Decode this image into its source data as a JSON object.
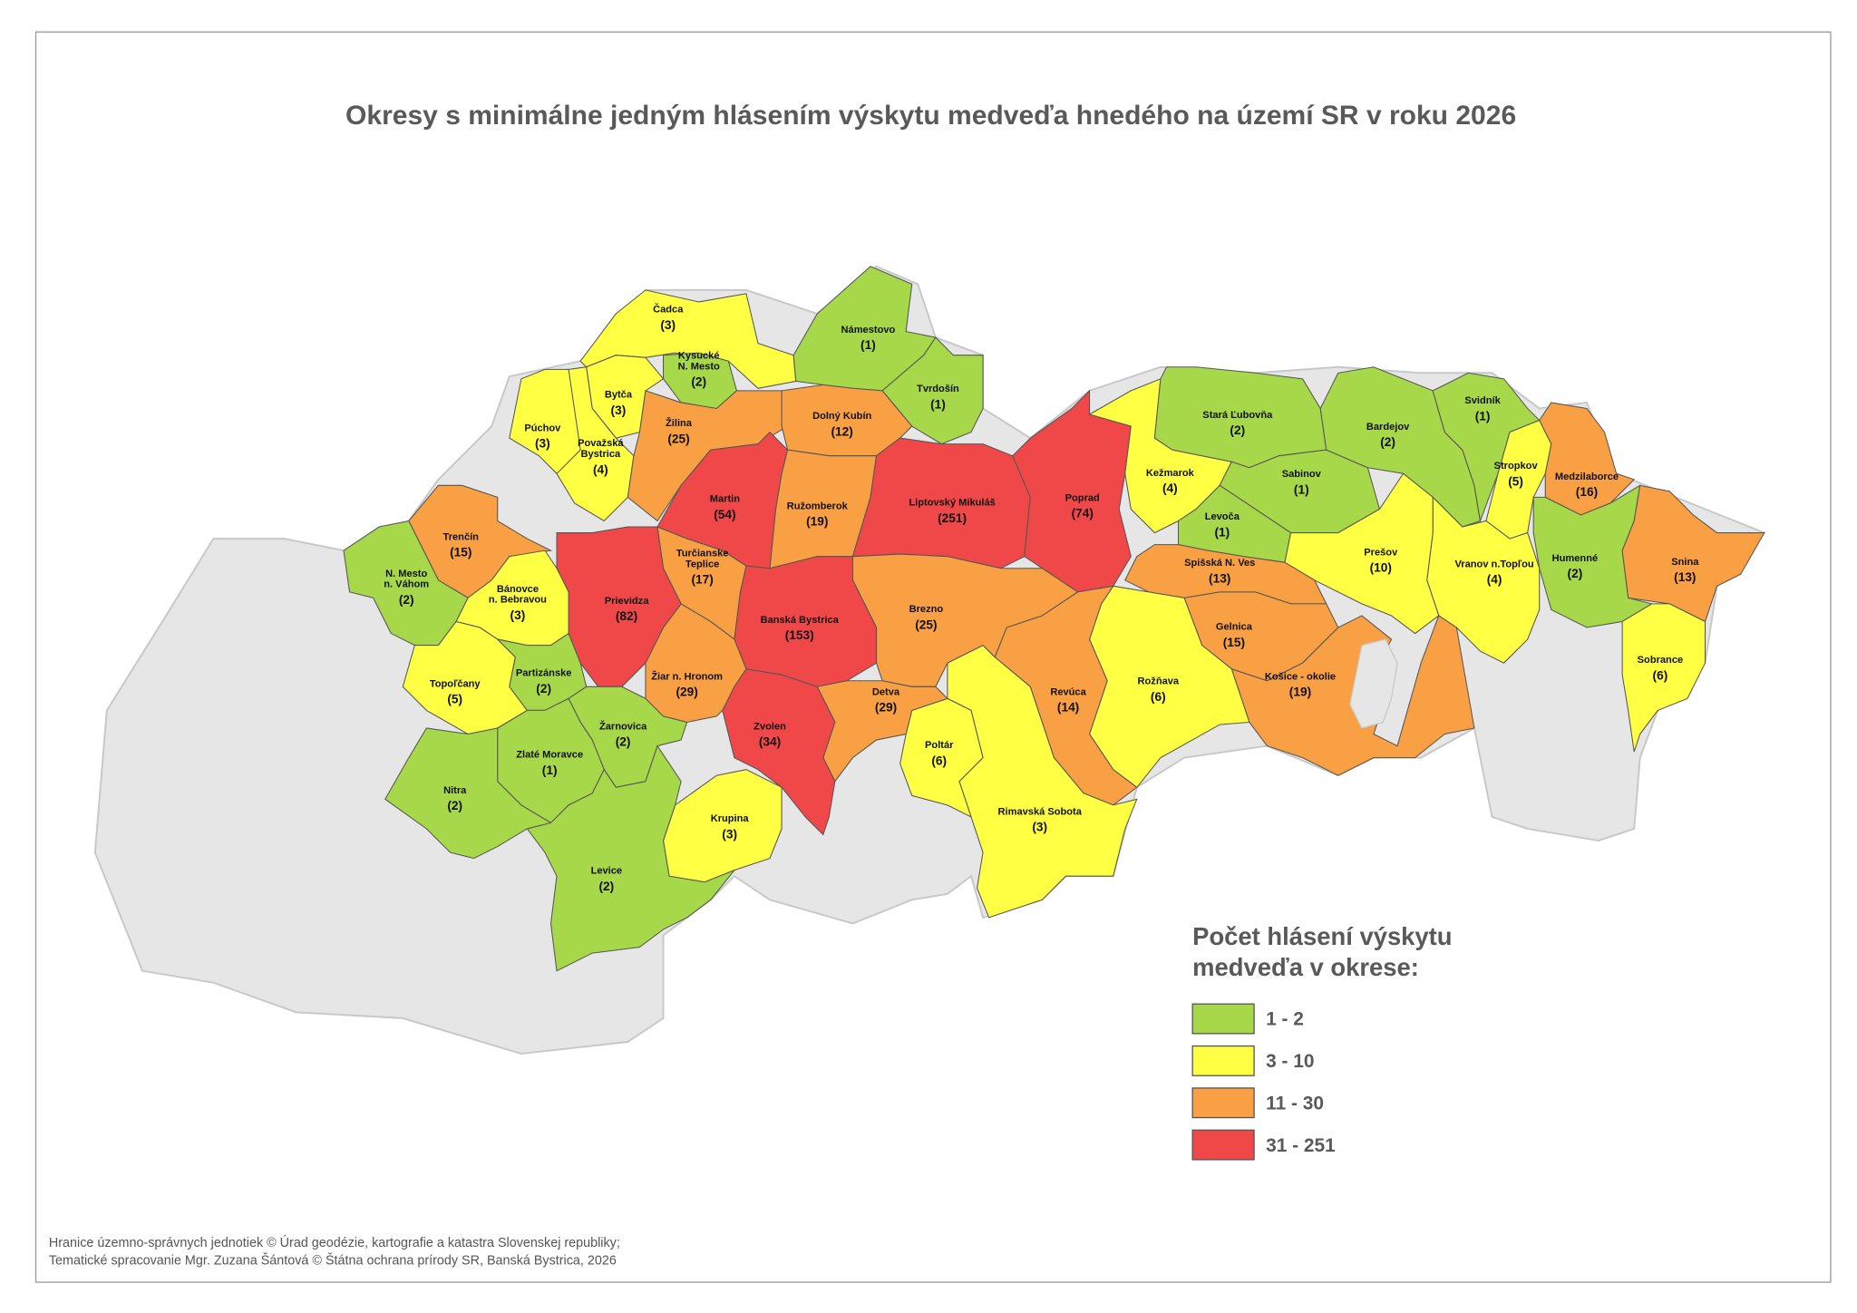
{
  "title": "Okresy s minimálne jedným hlásením výskytu medveďa hnedého na území SR v roku 2026",
  "districts": [
    {
      "name": "Čadca",
      "label": "(3)",
      "color": "#ffff44"
    },
    {
      "name": "Kysucké\nN. Mesto",
      "label": "(2)",
      "color": "#a6d84a"
    },
    {
      "name": "Bytča",
      "label": "(3)",
      "color": "#ffff44"
    },
    {
      "name": "Púchov",
      "label": "(3)",
      "color": "#ffff44"
    },
    {
      "name": "Považská\nBystrica",
      "label": "(4)",
      "color": "#ffff44"
    },
    {
      "name": "Žilina",
      "label": "(25)",
      "color": "#f8a043"
    },
    {
      "name": "Námestovo",
      "label": "(1)",
      "color": "#a6d84a"
    },
    {
      "name": "Tvrdošín",
      "label": "(1)",
      "color": "#a6d84a"
    },
    {
      "name": "Dolný Kubín",
      "label": "(12)",
      "color": "#f8a043"
    },
    {
      "name": "Martin",
      "label": "(54)",
      "color": "#f04848"
    },
    {
      "name": "Ružomberok",
      "label": "(19)",
      "color": "#f8a043"
    },
    {
      "name": "Liptovský Mikuláš",
      "label": "(251)",
      "color": "#f04848"
    },
    {
      "name": "Poprad",
      "label": "(74)",
      "color": "#f04848"
    },
    {
      "name": "Kežmarok",
      "label": "(4)",
      "color": "#ffff44"
    },
    {
      "name": "Stará Ľubovňa",
      "label": "(2)",
      "color": "#a6d84a"
    },
    {
      "name": "Sabinov",
      "label": "(1)",
      "color": "#a6d84a"
    },
    {
      "name": "Levoča",
      "label": "(1)",
      "color": "#a6d84a"
    },
    {
      "name": "Bardejov",
      "label": "(2)",
      "color": "#a6d84a"
    },
    {
      "name": "Svidník",
      "label": "(1)",
      "color": "#a6d84a"
    },
    {
      "name": "Stropkov",
      "label": "(5)",
      "color": "#ffff44"
    },
    {
      "name": "Medzilaborce",
      "label": "(16)",
      "color": "#f8a043"
    },
    {
      "name": "Humenné",
      "label": "(2)",
      "color": "#a6d84a"
    },
    {
      "name": "Snina",
      "label": "(13)",
      "color": "#f8a043"
    },
    {
      "name": "Vranov n.Topľou",
      "label": "(4)",
      "color": "#ffff44"
    },
    {
      "name": "Prešov",
      "label": "(10)",
      "color": "#ffff44"
    },
    {
      "name": "Spišská N. Ves",
      "label": "(13)",
      "color": "#f8a043"
    },
    {
      "name": "Gelnica",
      "label": "(15)",
      "color": "#f8a043"
    },
    {
      "name": "Košice - okolie",
      "label": "(19)",
      "color": "#f8a043"
    },
    {
      "name": "Sobrance",
      "label": "(6)",
      "color": "#ffff44"
    },
    {
      "name": "Rožňava",
      "label": "(6)",
      "color": "#ffff44"
    },
    {
      "name": "Revúca",
      "label": "(14)",
      "color": "#f8a043"
    },
    {
      "name": "Rimavská Sobota",
      "label": "(3)",
      "color": "#ffff44"
    },
    {
      "name": "Poltár",
      "label": "(6)",
      "color": "#ffff44"
    },
    {
      "name": "Brezno",
      "label": "(25)",
      "color": "#f8a043"
    },
    {
      "name": "Banská Bystrica",
      "label": "(153)",
      "color": "#f04848"
    },
    {
      "name": "Detva",
      "label": "(29)",
      "color": "#f8a043"
    },
    {
      "name": "Zvolen",
      "label": "(34)",
      "color": "#f04848"
    },
    {
      "name": "Turčianske\nTeplice",
      "label": "(17)",
      "color": "#f8a043"
    },
    {
      "name": "Žiar n. Hronom",
      "label": "(29)",
      "color": "#f8a043"
    },
    {
      "name": "Krupina",
      "label": "(3)",
      "color": "#ffff44"
    },
    {
      "name": "Prievidza",
      "label": "(82)",
      "color": "#f04848"
    },
    {
      "name": "Trenčín",
      "label": "(15)",
      "color": "#f8a043"
    },
    {
      "name": "N. Mesto\nn. Váhom",
      "label": "(2)",
      "color": "#a6d84a"
    },
    {
      "name": "Bánovce\nn. Bebravou",
      "label": "(3)",
      "color": "#ffff44"
    },
    {
      "name": "Topoľčany",
      "label": "(5)",
      "color": "#ffff44"
    },
    {
      "name": "Partizánske",
      "label": "(2)",
      "color": "#a6d84a"
    },
    {
      "name": "Žarnovica",
      "label": "(2)",
      "color": "#a6d84a"
    },
    {
      "name": "Zlaté Moravce",
      "label": "(1)",
      "color": "#a6d84a"
    },
    {
      "name": "Nitra",
      "label": "(2)",
      "color": "#a6d84a"
    },
    {
      "name": "Levice",
      "label": "(2)",
      "color": "#a6d84a"
    }
  ],
  "legend": {
    "title": "Počet hlásení výskytu\nmedveďa v okrese:",
    "items": [
      {
        "label": "1 - 2",
        "color": "#a6d84a"
      },
      {
        "label": "3 - 10",
        "color": "#ffff44"
      },
      {
        "label": "11 - 30",
        "color": "#f8a043"
      },
      {
        "label": "31 - 251",
        "color": "#f04848"
      }
    ]
  },
  "footer": [
    "Hranice územno-správnych jednotiek © Úrad geodézie, kartografie a katastra Slovenskej republiky;",
    "Tematické spracovanie Mgr. Zuzana Šántová © Štátna ochrana prírody SR, Banská Bystrica, 2026"
  ]
}
